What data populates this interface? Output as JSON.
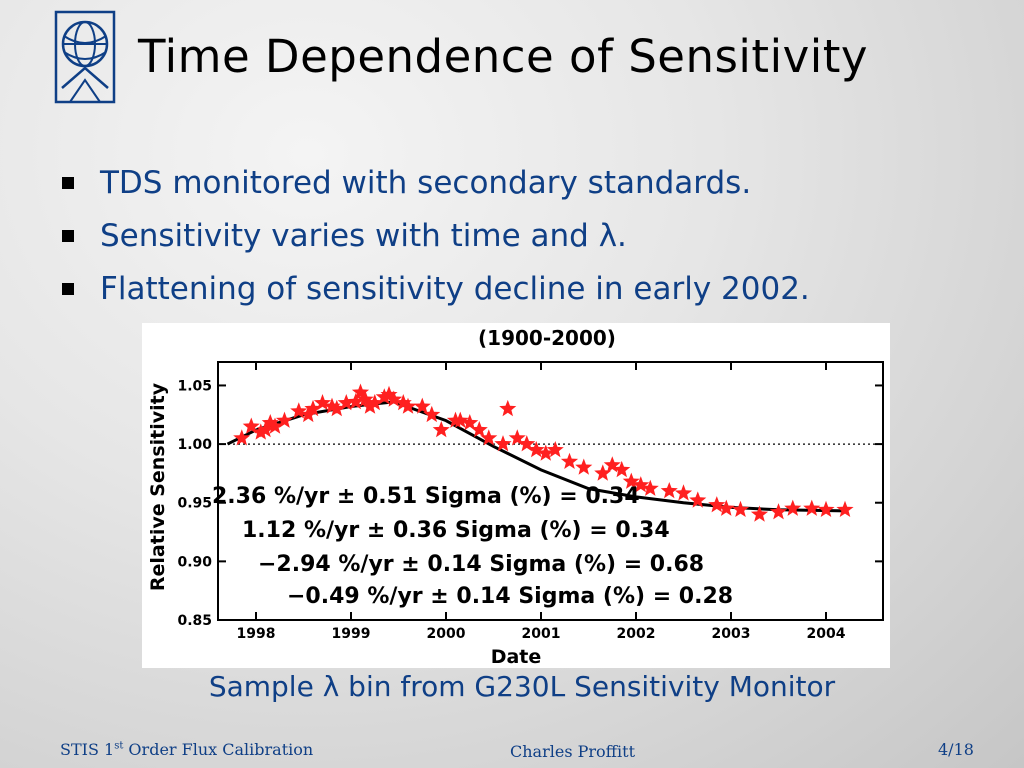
{
  "title": "Time Dependence of Sensitivity",
  "bullets": [
    {
      "text": "TDS monitored with secondary standards."
    },
    {
      "text": "Sensitivity varies with time and λ."
    },
    {
      "text": "Flattening of sensitivity decline in early 2002."
    }
  ],
  "caption": "Sample λ bin from G230L Sensitivity Monitor",
  "footer": {
    "left_prefix": "STIS 1",
    "left_sup": "st",
    "left_suffix": " Order Flux Calibration",
    "center": "Charles Proffitt",
    "right": "4/18"
  },
  "logo": {
    "icon": "stsci-logo-icon"
  },
  "colors": {
    "heading": "#000000",
    "body_text": "#0f3f86",
    "marker": "#ff2020",
    "fit_line": "#000000"
  },
  "chart_data": {
    "type": "scatter",
    "title": "(1900-2000)",
    "xlabel": "Date",
    "ylabel": "Relative Sensitivity",
    "xlim": [
      1997.6,
      2004.6
    ],
    "ylim": [
      0.85,
      1.07
    ],
    "x_ticks": [
      1998,
      1999,
      2000,
      2001,
      2002,
      2003,
      2004
    ],
    "y_ticks": [
      0.85,
      0.9,
      0.95,
      1.0,
      1.05
    ],
    "x_tick_labels": [
      "1998",
      "1999",
      "2000",
      "2001",
      "2002",
      "2003",
      "2004"
    ],
    "y_tick_labels": [
      "0.85",
      "0.90",
      "0.95",
      "1.00",
      "1.05"
    ],
    "reference_line": 1.0,
    "grid": false,
    "series": [
      {
        "marker": "star",
        "color": "#ff2020",
        "x": [
          1997.85,
          1997.95,
          1998.05,
          1998.1,
          1998.15,
          1998.2,
          1998.3,
          1998.45,
          1998.55,
          1998.6,
          1998.7,
          1998.8,
          1998.85,
          1998.95,
          1999.05,
          1999.1,
          1999.15,
          1999.2,
          1999.25,
          1999.35,
          1999.4,
          1999.45,
          1999.55,
          1999.6,
          1999.75,
          1999.85,
          1999.95,
          2000.1,
          2000.15,
          2000.25,
          2000.35,
          2000.45,
          2000.6,
          2000.65,
          2000.75,
          2000.85,
          2000.95,
          2001.05,
          2001.15,
          2001.3,
          2001.45,
          2001.65,
          2001.75,
          2001.85,
          2001.95,
          2002.05,
          2002.15,
          2002.35,
          2002.5,
          2002.65,
          2002.85,
          2002.95,
          2003.1,
          2003.3,
          2003.5,
          2003.65,
          2003.85,
          2004.0,
          2004.2
        ],
        "y": [
          1.005,
          1.015,
          1.01,
          1.012,
          1.018,
          1.015,
          1.02,
          1.028,
          1.025,
          1.03,
          1.035,
          1.032,
          1.03,
          1.035,
          1.036,
          1.044,
          1.038,
          1.032,
          1.035,
          1.04,
          1.042,
          1.038,
          1.035,
          1.032,
          1.032,
          1.025,
          1.012,
          1.02,
          1.02,
          1.018,
          1.012,
          1.005,
          1.0,
          1.03,
          1.005,
          1.0,
          0.995,
          0.992,
          0.995,
          0.985,
          0.98,
          0.975,
          0.982,
          0.978,
          0.968,
          0.965,
          0.962,
          0.96,
          0.958,
          0.952,
          0.948,
          0.945,
          0.944,
          0.94,
          0.942,
          0.945,
          0.945,
          0.944,
          0.944
        ]
      }
    ],
    "fit_line": {
      "x": [
        1997.7,
        1998.0,
        1998.5,
        1999.0,
        1999.45,
        2000.0,
        2000.5,
        2001.0,
        2001.5,
        2002.0,
        2002.5,
        2003.0,
        2003.5,
        2004.2
      ],
      "y": [
        1.0,
        1.012,
        1.025,
        1.032,
        1.036,
        1.02,
        0.998,
        0.978,
        0.962,
        0.955,
        0.95,
        0.946,
        0.944,
        0.943
      ]
    },
    "annotations": [
      "2.36 %/yr ± 0.51     Sigma (%) =  0.34",
      "1.12 %/yr ± 0.36     Sigma (%) =  0.34",
      "−2.94 %/yr ± 0.14     Sigma (%) =  0.68",
      "−0.49 %/yr ± 0.14     Sigma (%) =  0.28"
    ]
  }
}
